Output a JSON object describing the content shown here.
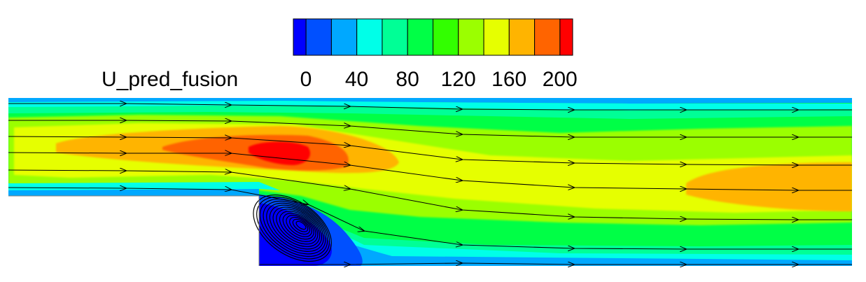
{
  "chart_data": {
    "type": "heatmap",
    "variable": "U_pred_fusion",
    "colorbar": {
      "label": "U_pred_fusion",
      "tick_labels": [
        "0",
        "40",
        "80",
        "120",
        "160",
        "200"
      ],
      "tick_values": [
        0,
        40,
        80,
        120,
        160,
        200
      ],
      "range": [
        0,
        220
      ],
      "levels": [
        {
          "min": 0,
          "max": 10,
          "color": "#0000ff"
        },
        {
          "min": 10,
          "max": 30,
          "color": "#0050ff"
        },
        {
          "min": 30,
          "max": 50,
          "color": "#00a8ff"
        },
        {
          "min": 50,
          "max": 70,
          "color": "#00ffe8"
        },
        {
          "min": 70,
          "max": 90,
          "color": "#00ff96"
        },
        {
          "min": 90,
          "max": 110,
          "color": "#00ff46"
        },
        {
          "min": 110,
          "max": 130,
          "color": "#32ff00"
        },
        {
          "min": 130,
          "max": 150,
          "color": "#9bff00"
        },
        {
          "min": 150,
          "max": 170,
          "color": "#e6ff00"
        },
        {
          "min": 170,
          "max": 190,
          "color": "#ffb400"
        },
        {
          "min": 190,
          "max": 210,
          "color": "#ff6400"
        },
        {
          "min": 210,
          "max": 220,
          "color": "#ff0000"
        }
      ]
    },
    "field": {
      "description": "velocity magnitude over a backward-facing step channel with streamlines",
      "max_value": 210,
      "min_value": 0,
      "recirculation_zone": "behind step"
    },
    "grid": false
  }
}
